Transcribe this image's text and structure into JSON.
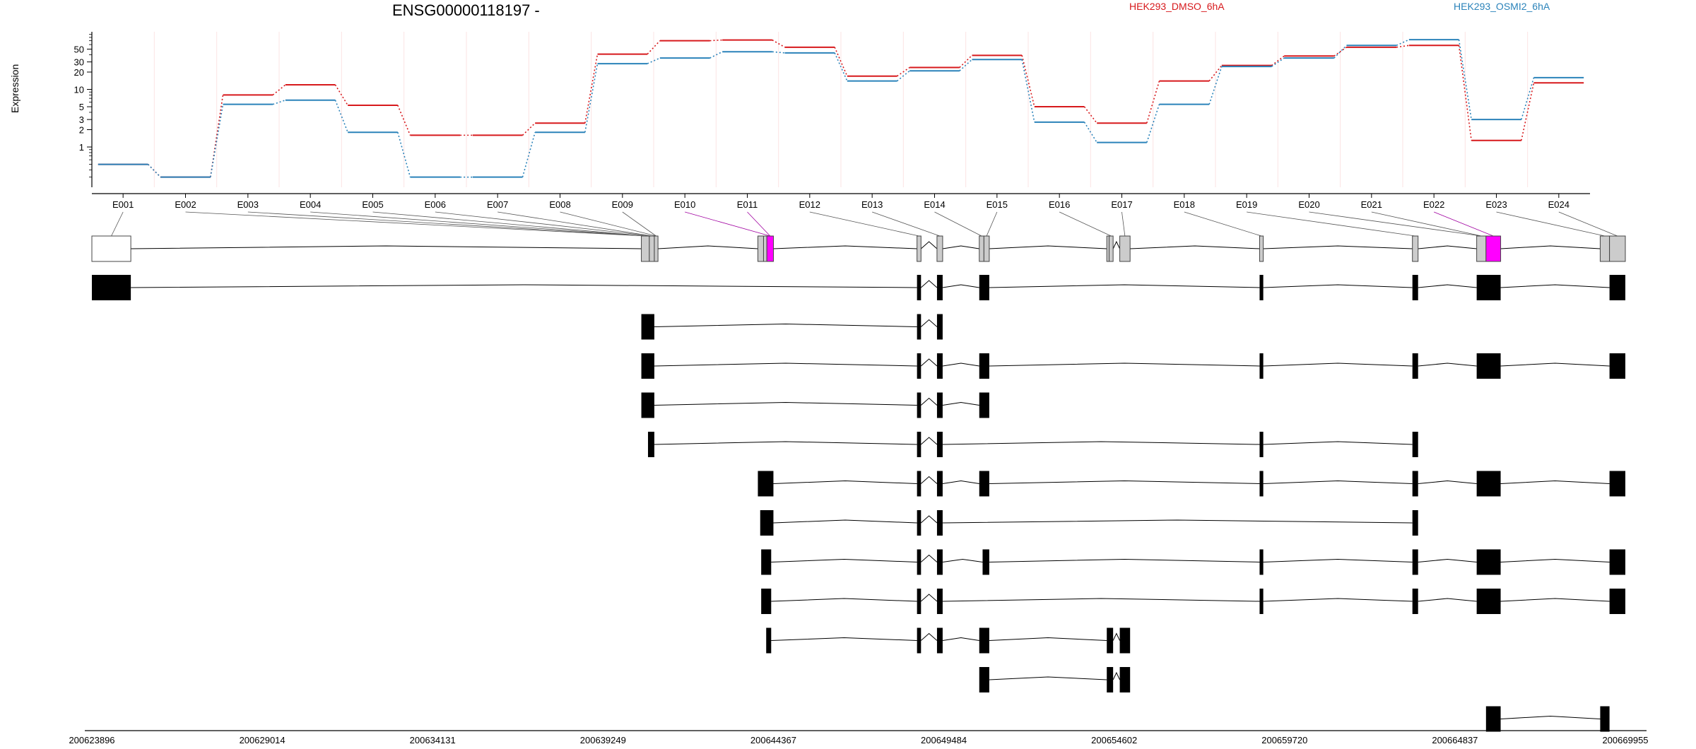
{
  "chart_data": {
    "type": "line",
    "title": "ENSG00000118197 -",
    "ylabel": "Expression",
    "yscale": "log",
    "ylim": [
      0.2,
      100
    ],
    "y_ticks": [
      1,
      2,
      3,
      5,
      10,
      20,
      30,
      50
    ],
    "y_tick_labels": [
      "1",
      "2",
      "3",
      "5",
      "10",
      "20",
      "30",
      "50"
    ],
    "grid": false,
    "legend_placement": "top-right",
    "categories": [
      "E001",
      "E002",
      "E003",
      "E004",
      "E005",
      "E006",
      "E007",
      "E008",
      "E009",
      "E010",
      "E011",
      "E012",
      "E013",
      "E014",
      "E015",
      "E016",
      "E017",
      "E018",
      "E019",
      "E020",
      "E021",
      "E022",
      "E023",
      "E024"
    ],
    "series": [
      {
        "name": "HEK293_DMSO_6hA",
        "color": "#d7191c",
        "values": [
          0.5,
          0.3,
          8,
          12,
          5.3,
          1.6,
          1.6,
          2.6,
          41,
          70,
          72,
          54,
          17,
          24,
          39,
          5,
          2.6,
          14,
          26,
          38,
          54,
          58,
          1.3,
          13
        ]
      },
      {
        "name": "HEK293_OSMI2_6hA",
        "color": "#2b83ba",
        "values": [
          0.5,
          0.3,
          5.5,
          6.5,
          1.8,
          0.3,
          0.3,
          1.8,
          28,
          35,
          45,
          43,
          14,
          21,
          33,
          2.7,
          1.2,
          5.5,
          25,
          35,
          58,
          73,
          3,
          16
        ]
      }
    ],
    "highlight_color": "#ff00ff",
    "genomic_axis_labels": [
      "200623896",
      "200629014",
      "200634131",
      "200639249",
      "200644367",
      "200649484",
      "200654602",
      "200659720",
      "200664837",
      "200669955"
    ]
  }
}
